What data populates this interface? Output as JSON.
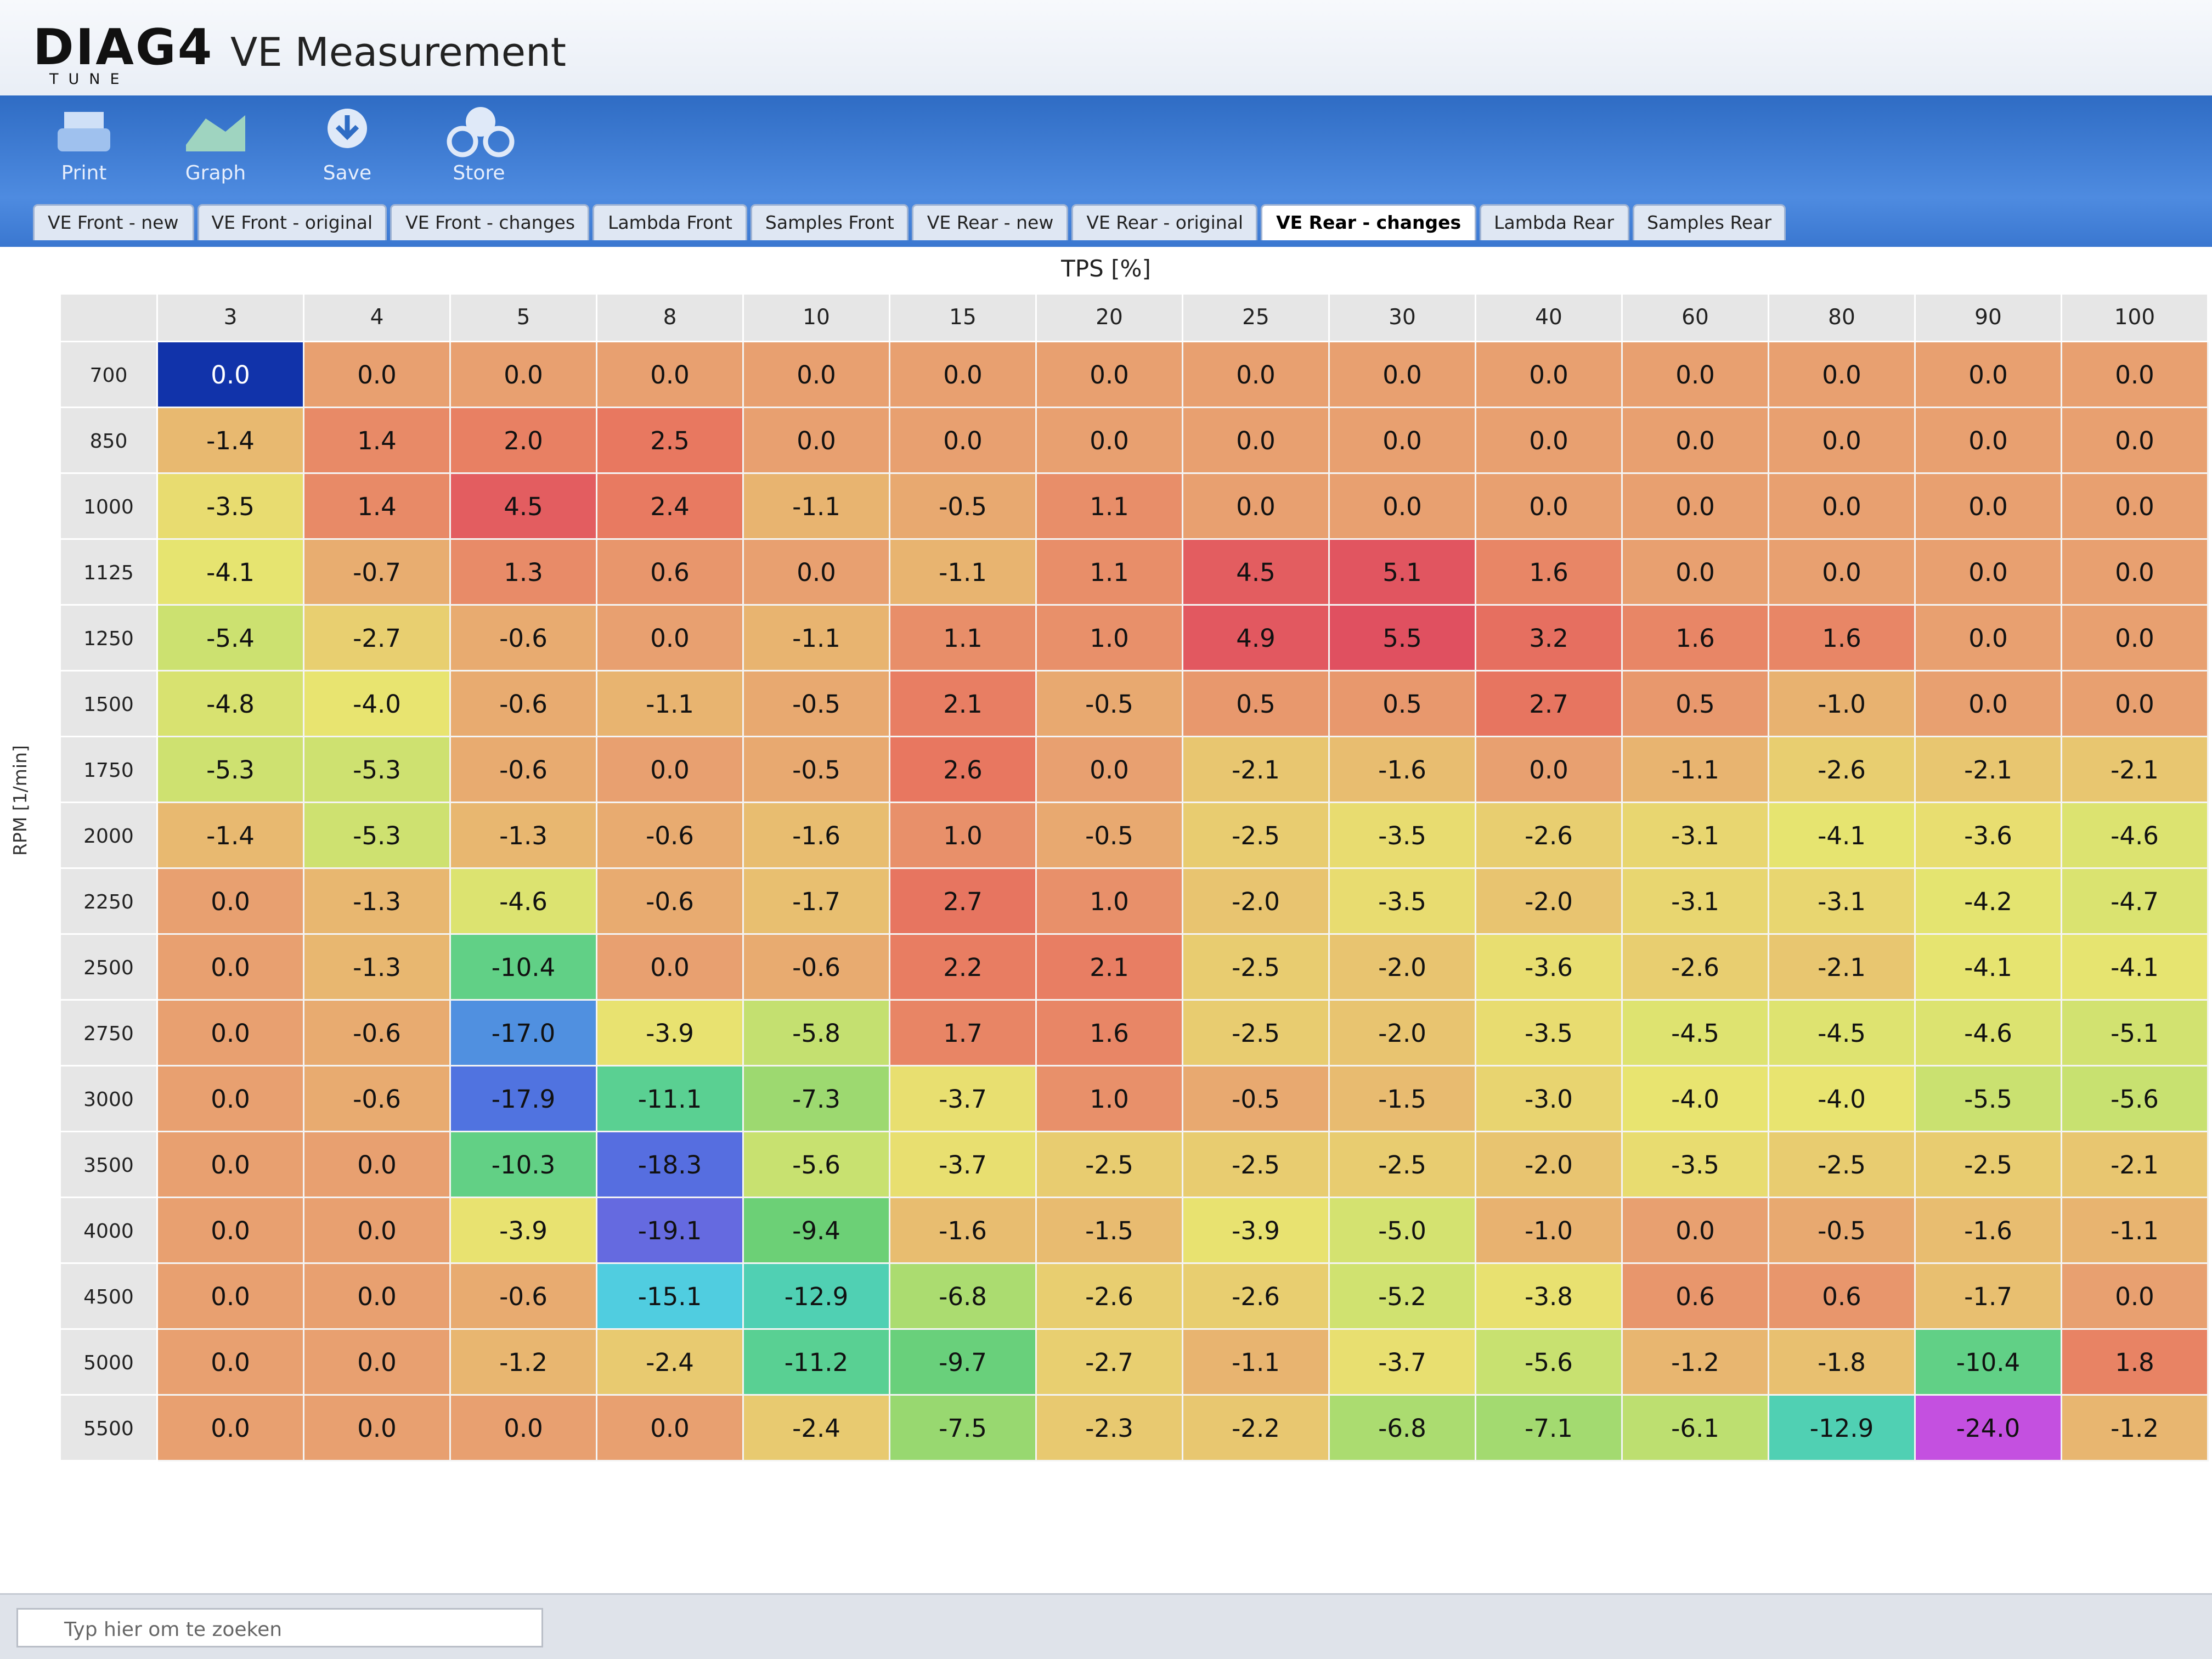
{
  "header": {
    "logo": "DIAG4",
    "logo_sub": "TUNE",
    "title": "VE Measurement"
  },
  "toolbar": [
    "Print",
    "Graph",
    "Save",
    "Store"
  ],
  "tabs": [
    "VE Front - new",
    "VE Front - original",
    "VE Front - changes",
    "Lambda Front",
    "Samples Front",
    "VE Rear - new",
    "VE Rear - original",
    "VE Rear - changes",
    "Lambda Rear",
    "Samples Rear"
  ],
  "selected_tab": 7,
  "table": {
    "x_label": "TPS [%]",
    "y_label": "RPM [1/min]",
    "columns": [
      3,
      4,
      5,
      8,
      10,
      15,
      20,
      25,
      30,
      40,
      60,
      80,
      90,
      100
    ],
    "rows": [
      700,
      850,
      1000,
      1125,
      1250,
      1500,
      1750,
      2000,
      2250,
      2500,
      2750,
      3000,
      3500,
      4000,
      4500,
      5000,
      5500
    ],
    "selected_cell": [
      0,
      0
    ],
    "cells": [
      [
        "0.0",
        "0.0",
        "0.0",
        "0.0",
        "0.0",
        "0.0",
        "0.0",
        "0.0",
        "0.0",
        "0.0",
        "0.0",
        "0.0",
        "0.0",
        "0.0"
      ],
      [
        "-1.4",
        "1.4",
        "2.0",
        "2.5",
        "0.0",
        "0.0",
        "0.0",
        "0.0",
        "0.0",
        "0.0",
        "0.0",
        "0.0",
        "0.0",
        "0.0"
      ],
      [
        "-3.5",
        "1.4",
        "4.5",
        "2.4",
        "-1.1",
        "-0.5",
        "1.1",
        "0.0",
        "0.0",
        "0.0",
        "0.0",
        "0.0",
        "0.0",
        "0.0"
      ],
      [
        "-4.1",
        "-0.7",
        "1.3",
        "0.6",
        "0.0",
        "-1.1",
        "1.1",
        "4.5",
        "5.1",
        "1.6",
        "0.0",
        "0.0",
        "0.0",
        "0.0"
      ],
      [
        "-5.4",
        "-2.7",
        "-0.6",
        "0.0",
        "-1.1",
        "1.1",
        "1.0",
        "4.9",
        "5.5",
        "3.2",
        "1.6",
        "1.6",
        "0.0",
        "0.0"
      ],
      [
        "-4.8",
        "-4.0",
        "-0.6",
        "-1.1",
        "-0.5",
        "2.1",
        "-0.5",
        "0.5",
        "0.5",
        "2.7",
        "0.5",
        "-1.0",
        "0.0",
        "0.0"
      ],
      [
        "-5.3",
        "-5.3",
        "-0.6",
        "0.0",
        "-0.5",
        "2.6",
        "0.0",
        "-2.1",
        "-1.6",
        "0.0",
        "-1.1",
        "-2.6",
        "-2.1",
        "-2.1"
      ],
      [
        "-1.4",
        "-5.3",
        "-1.3",
        "-0.6",
        "-1.6",
        "1.0",
        "-0.5",
        "-2.5",
        "-3.5",
        "-2.6",
        "-3.1",
        "-4.1",
        "-3.6",
        "-4.6"
      ],
      [
        "0.0",
        "-1.3",
        "-4.6",
        "-0.6",
        "-1.7",
        "2.7",
        "1.0",
        "-2.0",
        "-3.5",
        "-2.0",
        "-3.1",
        "-3.1",
        "-4.2",
        "-4.7"
      ],
      [
        "0.0",
        "-1.3",
        "-10.4",
        "0.0",
        "-0.6",
        "2.2",
        "2.1",
        "-2.5",
        "-2.0",
        "-3.6",
        "-2.6",
        "-2.1",
        "-4.1",
        "-4.1"
      ],
      [
        "0.0",
        "-0.6",
        "-17.0",
        "-3.9",
        "-5.8",
        "1.7",
        "1.6",
        "-2.5",
        "-2.0",
        "-3.5",
        "-4.5",
        "-4.5",
        "-4.6",
        "-5.1"
      ],
      [
        "0.0",
        "-0.6",
        "-17.9",
        "-11.1",
        "-7.3",
        "-3.7",
        "1.0",
        "-0.5",
        "-1.5",
        "-3.0",
        "-4.0",
        "-4.0",
        "-5.5",
        "-5.6"
      ],
      [
        "0.0",
        "0.0",
        "-10.3",
        "-18.3",
        "-5.6",
        "-3.7",
        "-2.5",
        "-2.5",
        "-2.5",
        "-2.0",
        "-3.5",
        "-2.5",
        "-2.5",
        "-2.1"
      ],
      [
        "0.0",
        "0.0",
        "-3.9",
        "-19.1",
        "-9.4",
        "-1.6",
        "-1.5",
        "-3.9",
        "-5.0",
        "-1.0",
        "0.0",
        "-0.5",
        "-1.6",
        "-1.1"
      ],
      [
        "0.0",
        "0.0",
        "-0.6",
        "-15.1",
        "-12.9",
        "-6.8",
        "-2.6",
        "-2.6",
        "-5.2",
        "-3.8",
        "0.6",
        "0.6",
        "-1.7",
        "0.0"
      ],
      [
        "0.0",
        "0.0",
        "-1.2",
        "-2.4",
        "-11.2",
        "-9.7",
        "-2.7",
        "-1.1",
        "-3.7",
        "-5.6",
        "-1.2",
        "-1.8",
        "-10.4",
        "1.8"
      ],
      [
        "0.0",
        "0.0",
        "0.0",
        "0.0",
        "-2.4",
        "-7.5",
        "-2.3",
        "-2.2",
        "-6.8",
        "-7.1",
        "-6.1",
        "-12.9",
        "-24.0",
        "-1.2"
      ]
    ]
  },
  "taskbar": {
    "search": "Typ hier om te zoeken"
  }
}
